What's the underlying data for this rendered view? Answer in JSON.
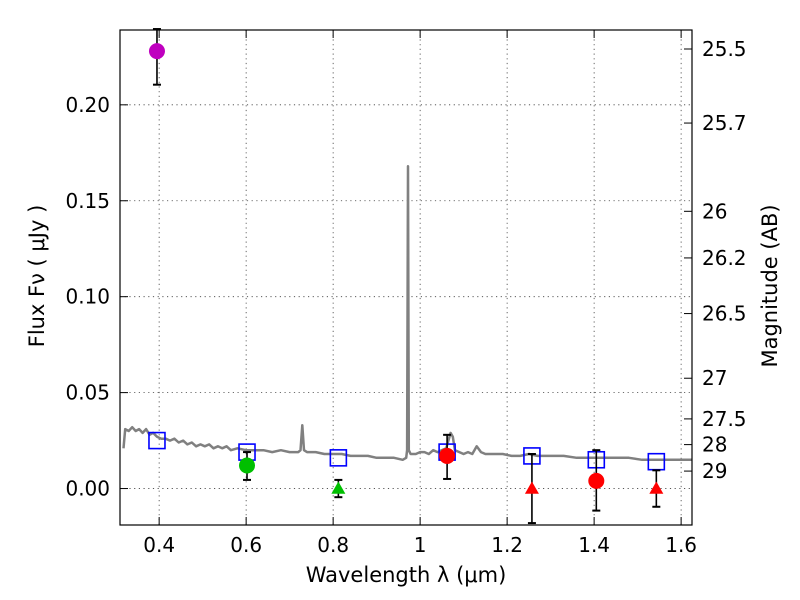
{
  "chart_data": {
    "type": "scatter",
    "title": "",
    "xlabel": "Wavelength  λ (μm)",
    "ylabel_left": "Flux  Fν  ( μJy )",
    "ylabel_right": "Magnitude (AB)",
    "xlim": [
      0.31,
      1.625
    ],
    "ylim": [
      -0.019,
      0.239
    ],
    "x_ticks": [
      0.4,
      0.6,
      0.8,
      1.0,
      1.2,
      1.4,
      1.6
    ],
    "x_tick_labels": [
      "0.4",
      "0.6",
      "0.8",
      "1",
      "1.2",
      "1.4",
      "1.6"
    ],
    "y_ticks": [
      0.0,
      0.05,
      0.1,
      0.15,
      0.2
    ],
    "y_tick_labels": [
      "0.00",
      "0.05",
      "0.10",
      "0.15",
      "0.20"
    ],
    "right_ticks": [
      {
        "label": "25.5",
        "flux": 0.2291
      },
      {
        "label": "25.7",
        "flux": 0.1905
      },
      {
        "label": "26",
        "flux": 0.1445
      },
      {
        "label": "26.2",
        "flux": 0.1202
      },
      {
        "label": "26.5",
        "flux": 0.0912
      },
      {
        "label": "27",
        "flux": 0.0575
      },
      {
        "label": "27.5",
        "flux": 0.0363
      },
      {
        "label": "28",
        "flux": 0.0229
      },
      {
        "label": "29",
        "flux": 0.0091
      }
    ],
    "grid": true,
    "colors": {
      "magenta": "#BF00BF",
      "green": "#00BF00",
      "red": "#FF0000",
      "model_line": "#808080",
      "model_box": "#0000FF",
      "errorbar": "#000000"
    },
    "detections": [
      {
        "x": 0.395,
        "y": 0.228,
        "yerr_low": 0.0175,
        "yerr_high": 0.0115,
        "color": "magenta"
      },
      {
        "x": 0.602,
        "y": 0.012,
        "yerr_low": 0.0075,
        "yerr_high": 0.007,
        "color": "green"
      },
      {
        "x": 1.062,
        "y": 0.017,
        "yerr_low": 0.012,
        "yerr_high": 0.011,
        "color": "red"
      },
      {
        "x": 1.405,
        "y": 0.004,
        "yerr_low": 0.0155,
        "yerr_high": 0.016,
        "color": "red"
      }
    ],
    "upper_limits": [
      {
        "x": 0.812,
        "y": 0.0,
        "err": 0.0045,
        "color": "green"
      },
      {
        "x": 1.257,
        "y": 0.0,
        "err": 0.018,
        "color": "red"
      },
      {
        "x": 1.543,
        "y": 0.0,
        "err": 0.0095,
        "color": "red"
      }
    ],
    "model_photometry": [
      {
        "x": 0.395,
        "y": 0.025
      },
      {
        "x": 0.602,
        "y": 0.019
      },
      {
        "x": 0.812,
        "y": 0.016
      },
      {
        "x": 1.062,
        "y": 0.019
      },
      {
        "x": 1.257,
        "y": 0.017
      },
      {
        "x": 1.405,
        "y": 0.015
      },
      {
        "x": 1.543,
        "y": 0.014
      }
    ],
    "model_spectrum": [
      [
        0.318,
        0.021
      ],
      [
        0.322,
        0.031
      ],
      [
        0.33,
        0.03
      ],
      [
        0.338,
        0.032
      ],
      [
        0.346,
        0.03
      ],
      [
        0.354,
        0.031
      ],
      [
        0.362,
        0.029
      ],
      [
        0.37,
        0.031
      ],
      [
        0.378,
        0.028
      ],
      [
        0.386,
        0.029
      ],
      [
        0.395,
        0.027
      ],
      [
        0.405,
        0.026
      ],
      [
        0.415,
        0.026
      ],
      [
        0.425,
        0.025
      ],
      [
        0.435,
        0.026
      ],
      [
        0.445,
        0.024
      ],
      [
        0.455,
        0.025
      ],
      [
        0.465,
        0.023
      ],
      [
        0.475,
        0.024
      ],
      [
        0.485,
        0.022
      ],
      [
        0.495,
        0.023
      ],
      [
        0.505,
        0.022
      ],
      [
        0.515,
        0.023
      ],
      [
        0.525,
        0.021
      ],
      [
        0.535,
        0.022
      ],
      [
        0.545,
        0.021
      ],
      [
        0.555,
        0.022
      ],
      [
        0.565,
        0.02
      ],
      [
        0.58,
        0.021
      ],
      [
        0.6,
        0.02
      ],
      [
        0.62,
        0.02
      ],
      [
        0.64,
        0.02
      ],
      [
        0.66,
        0.019
      ],
      [
        0.68,
        0.02
      ],
      [
        0.7,
        0.019
      ],
      [
        0.72,
        0.019
      ],
      [
        0.725,
        0.02
      ],
      [
        0.729,
        0.033
      ],
      [
        0.733,
        0.02
      ],
      [
        0.74,
        0.019
      ],
      [
        0.76,
        0.019
      ],
      [
        0.78,
        0.018
      ],
      [
        0.8,
        0.018
      ],
      [
        0.82,
        0.018
      ],
      [
        0.84,
        0.017
      ],
      [
        0.86,
        0.017
      ],
      [
        0.88,
        0.017
      ],
      [
        0.9,
        0.016
      ],
      [
        0.92,
        0.016
      ],
      [
        0.94,
        0.016
      ],
      [
        0.96,
        0.015
      ],
      [
        0.968,
        0.016
      ],
      [
        0.97,
        0.02
      ],
      [
        0.972,
        0.168
      ],
      [
        0.974,
        0.02
      ],
      [
        0.978,
        0.018
      ],
      [
        0.99,
        0.018
      ],
      [
        1.0,
        0.019
      ],
      [
        1.01,
        0.019
      ],
      [
        1.02,
        0.018
      ],
      [
        1.03,
        0.02
      ],
      [
        1.04,
        0.019
      ],
      [
        1.05,
        0.02
      ],
      [
        1.06,
        0.021
      ],
      [
        1.07,
        0.029
      ],
      [
        1.075,
        0.027
      ],
      [
        1.08,
        0.02
      ],
      [
        1.09,
        0.019
      ],
      [
        1.1,
        0.018
      ],
      [
        1.11,
        0.019
      ],
      [
        1.12,
        0.018
      ],
      [
        1.13,
        0.022
      ],
      [
        1.14,
        0.019
      ],
      [
        1.15,
        0.018
      ],
      [
        1.17,
        0.018
      ],
      [
        1.19,
        0.018
      ],
      [
        1.21,
        0.017
      ],
      [
        1.23,
        0.017
      ],
      [
        1.25,
        0.018
      ],
      [
        1.27,
        0.017
      ],
      [
        1.3,
        0.017
      ],
      [
        1.33,
        0.017
      ],
      [
        1.36,
        0.016
      ],
      [
        1.39,
        0.016
      ],
      [
        1.42,
        0.016
      ],
      [
        1.45,
        0.016
      ],
      [
        1.48,
        0.016
      ],
      [
        1.51,
        0.015
      ],
      [
        1.54,
        0.015
      ],
      [
        1.57,
        0.015
      ],
      [
        1.6,
        0.015
      ],
      [
        1.625,
        0.015
      ]
    ]
  }
}
